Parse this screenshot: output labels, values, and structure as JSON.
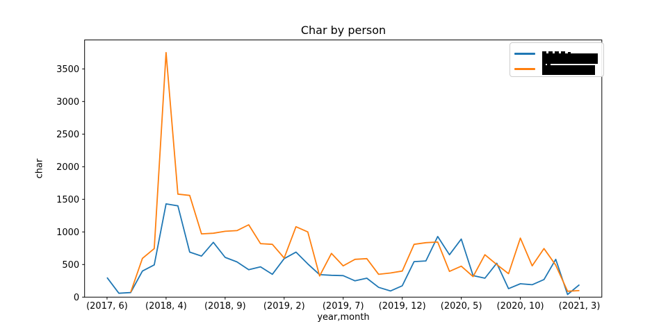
{
  "figure": {
    "title": "Char by person",
    "xlabel": "year,month",
    "ylabel": "char"
  },
  "chart_data": {
    "type": "line",
    "title": "Char by person",
    "xlabel": "year,month",
    "ylabel": "char",
    "grid": false,
    "background": "#ffffff",
    "x_axis": {
      "kind": "category-(year,month)",
      "tick_indices": [
        0,
        5,
        10,
        15,
        20,
        25,
        30,
        35,
        40
      ],
      "tick_labels": [
        "(2017, 6)",
        "(2018, 4)",
        "(2018, 9)",
        "(2019, 2)",
        "(2019, 7)",
        "(2019, 12)",
        "(2020, 5)",
        "(2020, 10)",
        "(2021, 3)"
      ]
    },
    "y_axis": {
      "ticks": [
        0,
        500,
        1000,
        1500,
        2000,
        2500,
        3000,
        3500
      ]
    },
    "xlim": [
      -1.9,
      41.9
    ],
    "ylim": [
      0,
      3944
    ],
    "legend": {
      "position": "upper right",
      "entries": [
        {
          "label_redacted": true,
          "color": "#1f77b4"
        },
        {
          "label_redacted": true,
          "color": "#ff7f0e"
        }
      ]
    },
    "series": [
      {
        "name": "series-blue (legend label redacted)",
        "color": "#1f77b4",
        "values": [
          300,
          60,
          70,
          400,
          495,
          1430,
          1400,
          690,
          630,
          840,
          610,
          540,
          420,
          465,
          350,
          590,
          690,
          510,
          345,
          335,
          330,
          250,
          290,
          150,
          95,
          175,
          545,
          555,
          930,
          650,
          890,
          330,
          290,
          520,
          130,
          205,
          190,
          270,
          580,
          40,
          190
        ]
      },
      {
        "name": "series-orange (legend label redacted)",
        "color": "#ff7f0e",
        "values": [
          null,
          null,
          75,
          595,
          745,
          3750,
          1580,
          1560,
          970,
          980,
          1010,
          1020,
          1110,
          820,
          810,
          600,
          1080,
          1000,
          325,
          670,
          480,
          580,
          590,
          350,
          370,
          400,
          810,
          835,
          845,
          395,
          475,
          315,
          650,
          500,
          360,
          905,
          480,
          745,
          490,
          90,
          100
        ]
      }
    ]
  }
}
